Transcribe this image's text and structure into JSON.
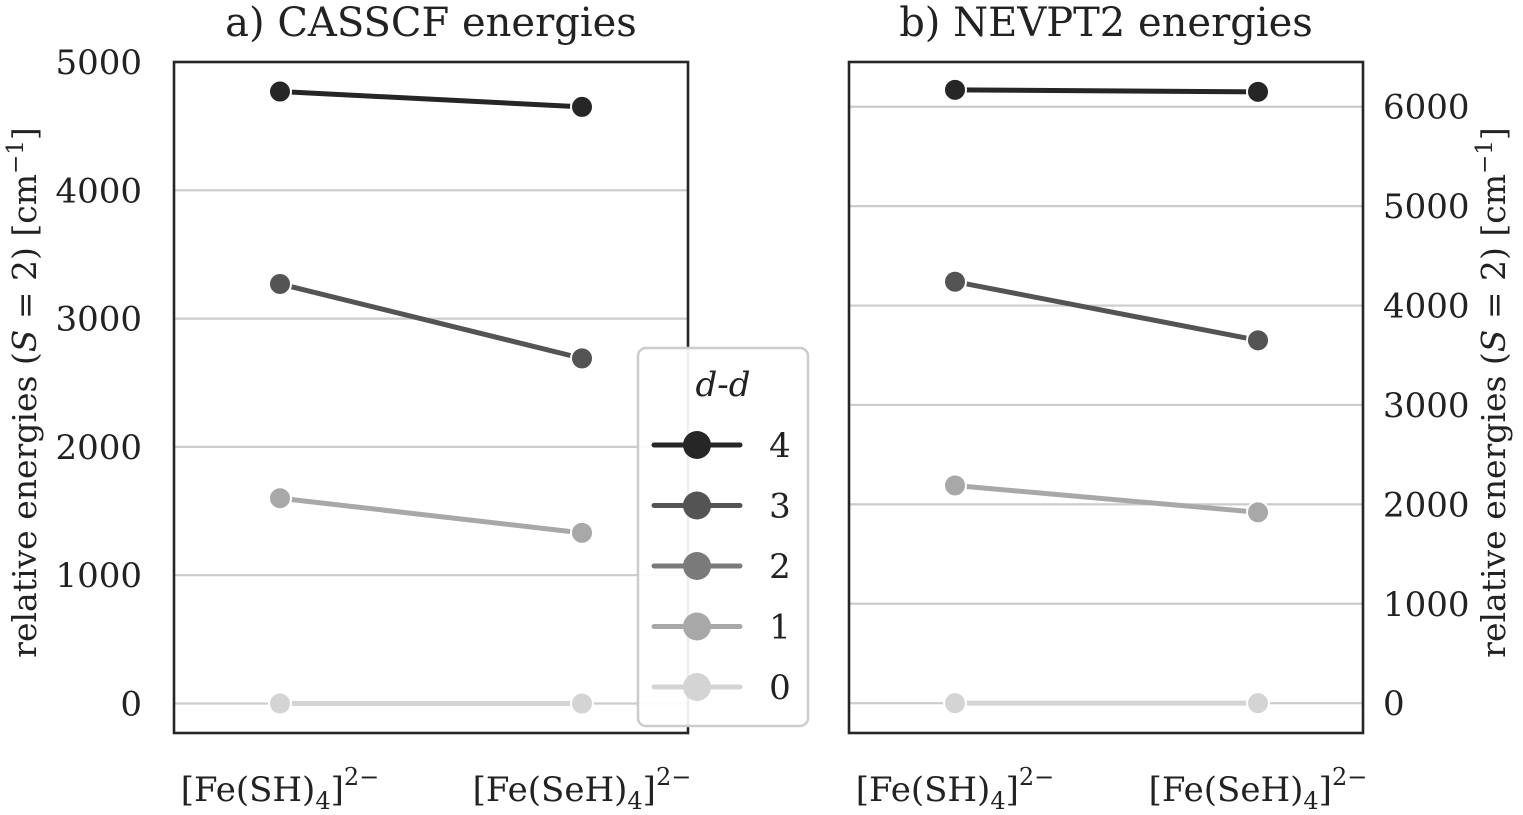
{
  "chart_data": [
    {
      "type": "line",
      "title": "a) CASSCF energies",
      "ylabel": "relative energies (S = 2) [cm⁻¹]",
      "ylabel_parts": {
        "pre": "relative energies (",
        "var": "S",
        "mid": " = 2) [cm",
        "sup": "−1",
        "post": "]"
      },
      "ylim": [
        -230,
        5000
      ],
      "yticks": [
        0,
        1000,
        2000,
        3000,
        4000,
        5000
      ],
      "y_axis_side": "left",
      "grid": true,
      "categories": [
        {
          "base": "[Fe(SH)",
          "sub": "4",
          "close": "]",
          "sup": "2−"
        },
        {
          "base": "[Fe(SeH)",
          "sub": "4",
          "close": "]",
          "sup": "2−"
        }
      ],
      "series": [
        {
          "name": "4",
          "values": [
            4770,
            4650
          ]
        },
        {
          "name": "3",
          "values": [
            3270,
            2690
          ]
        },
        {
          "name": "1",
          "values": [
            1600,
            1330
          ]
        },
        {
          "name": "0",
          "values": [
            0,
            0
          ]
        }
      ]
    },
    {
      "type": "line",
      "title": "b) NEVPT2 energies",
      "ylabel": "relative energies (S = 2) [cm⁻¹]",
      "ylabel_parts": {
        "pre": "relative energies (",
        "var": "S",
        "mid": " = 2) [cm",
        "sup": "−1",
        "post": "]"
      },
      "ylim": [
        -300,
        6450
      ],
      "yticks": [
        0,
        1000,
        2000,
        3000,
        4000,
        5000,
        6000
      ],
      "y_axis_side": "right",
      "grid": true,
      "categories": [
        {
          "base": "[Fe(SH)",
          "sub": "4",
          "close": "]",
          "sup": "2−"
        },
        {
          "base": "[Fe(SeH)",
          "sub": "4",
          "close": "]",
          "sup": "2−"
        }
      ],
      "series": [
        {
          "name": "4",
          "values": [
            6170,
            6150
          ]
        },
        {
          "name": "3",
          "values": [
            4240,
            3650
          ]
        },
        {
          "name": "1",
          "values": [
            2190,
            1920
          ]
        },
        {
          "name": "0",
          "values": [
            0,
            0
          ]
        }
      ]
    }
  ],
  "legend": {
    "title": "d-d",
    "placement": "right of panel a",
    "entries": [
      {
        "label": "4",
        "color": "#262626"
      },
      {
        "label": "3",
        "color": "#545454"
      },
      {
        "label": "2",
        "color": "#7a7a7a"
      },
      {
        "label": "1",
        "color": "#a8a8a8"
      },
      {
        "label": "0",
        "color": "#d4d4d4"
      }
    ]
  }
}
